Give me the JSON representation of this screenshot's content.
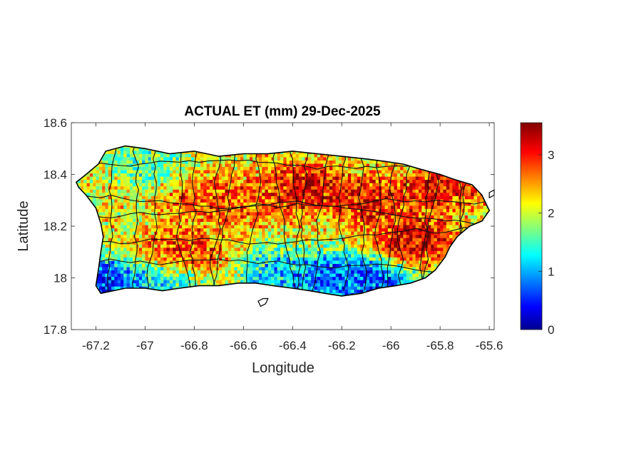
{
  "figure": {
    "title": "ACTUAL ET (mm) 29-Dec-2025",
    "xlabel": "Longitude",
    "ylabel": "Latitude"
  },
  "map": {
    "region": "Puerto Rico",
    "variable": "actual evapotranspiration",
    "units": "mm",
    "xlim": [
      -67.3,
      -65.58
    ],
    "ylim": [
      17.8,
      18.6
    ],
    "x_ticks": [
      "-67.2",
      "-67",
      "-66.8",
      "-66.6",
      "-66.4",
      "-66.2",
      "-66",
      "-65.8",
      "-65.6"
    ],
    "x_tick_values": [
      -67.2,
      -67.0,
      -66.8,
      -66.6,
      -66.4,
      -66.2,
      -66.0,
      -65.8,
      -65.6
    ],
    "y_ticks": [
      "18.6",
      "18.4",
      "18.2",
      "18",
      "17.8"
    ],
    "y_tick_values": [
      18.6,
      18.4,
      18.2,
      18.0,
      17.8
    ],
    "colormap": "jet",
    "colors": [
      "#00008f",
      "#0000ff",
      "#00ffff",
      "#ffff00",
      "#ff0000",
      "#800000"
    ],
    "boundary_color": "#000000",
    "outline": [
      [
        -67.28,
        18.37
      ],
      [
        -67.24,
        18.4
      ],
      [
        -67.19,
        18.44
      ],
      [
        -67.16,
        18.49
      ],
      [
        -67.08,
        18.51
      ],
      [
        -67.0,
        18.5
      ],
      [
        -66.9,
        18.48
      ],
      [
        -66.8,
        18.49
      ],
      [
        -66.7,
        18.47
      ],
      [
        -66.6,
        18.48
      ],
      [
        -66.5,
        18.48
      ],
      [
        -66.4,
        18.49
      ],
      [
        -66.3,
        18.48
      ],
      [
        -66.2,
        18.47
      ],
      [
        -66.1,
        18.46
      ],
      [
        -66.02,
        18.45
      ],
      [
        -65.95,
        18.44
      ],
      [
        -65.88,
        18.42
      ],
      [
        -65.8,
        18.4
      ],
      [
        -65.74,
        18.38
      ],
      [
        -65.67,
        18.36
      ],
      [
        -65.63,
        18.32
      ],
      [
        -65.6,
        18.26
      ],
      [
        -65.63,
        18.22
      ],
      [
        -65.68,
        18.2
      ],
      [
        -65.73,
        18.16
      ],
      [
        -65.76,
        18.12
      ],
      [
        -65.78,
        18.08
      ],
      [
        -65.82,
        18.03
      ],
      [
        -65.86,
        18.0
      ],
      [
        -65.92,
        17.98
      ],
      [
        -65.98,
        17.97
      ],
      [
        -66.05,
        17.96
      ],
      [
        -66.12,
        17.94
      ],
      [
        -66.2,
        17.93
      ],
      [
        -66.27,
        17.94
      ],
      [
        -66.33,
        17.95
      ],
      [
        -66.4,
        17.96
      ],
      [
        -66.48,
        17.97
      ],
      [
        -66.55,
        17.98
      ],
      [
        -66.62,
        17.98
      ],
      [
        -66.7,
        17.97
      ],
      [
        -66.78,
        17.97
      ],
      [
        -66.86,
        17.96
      ],
      [
        -66.93,
        17.95
      ],
      [
        -67.0,
        17.96
      ],
      [
        -67.08,
        17.96
      ],
      [
        -67.13,
        17.95
      ],
      [
        -67.18,
        17.94
      ],
      [
        -67.2,
        17.97
      ],
      [
        -67.19,
        18.03
      ],
      [
        -67.18,
        18.1
      ],
      [
        -67.17,
        18.16
      ],
      [
        -67.18,
        18.21
      ],
      [
        -67.2,
        18.27
      ],
      [
        -67.24,
        18.32
      ],
      [
        -67.27,
        18.35
      ]
    ],
    "islands": [
      [
        [
          -66.54,
          17.91
        ],
        [
          -66.52,
          17.92
        ],
        [
          -66.5,
          17.92
        ],
        [
          -66.51,
          17.9
        ],
        [
          -66.53,
          17.89
        ]
      ],
      [
        [
          -65.6,
          18.33
        ],
        [
          -65.58,
          18.34
        ],
        [
          -65.58,
          18.32
        ],
        [
          -65.6,
          18.31
        ]
      ]
    ],
    "et_peaks": [
      {
        "lon": -66.35,
        "lat": 18.35,
        "value": 3.4
      },
      {
        "lon": -66.1,
        "lat": 18.3,
        "value": 3.3
      },
      {
        "lon": -65.9,
        "lat": 18.15,
        "value": 3.5
      },
      {
        "lon": -65.8,
        "lat": 18.35,
        "value": 3.3
      },
      {
        "lon": -66.75,
        "lat": 18.3,
        "value": 3.0
      },
      {
        "lon": -66.85,
        "lat": 18.1,
        "value": 3.1
      },
      {
        "lon": -66.55,
        "lat": 18.3,
        "value": 2.9
      },
      {
        "lon": -66.25,
        "lat": 18.0,
        "value": 0.5
      },
      {
        "lon": -66.08,
        "lat": 17.98,
        "value": 0.4
      },
      {
        "lon": -66.45,
        "lat": 18.02,
        "value": 0.9
      },
      {
        "lon": -67.17,
        "lat": 17.98,
        "value": 0.2
      },
      {
        "lon": -67.0,
        "lat": 18.45,
        "value": 1.5
      },
      {
        "lon": -66.93,
        "lat": 17.99,
        "value": 1.1
      }
    ],
    "et_base": 2.2
  },
  "colorbar": {
    "range": [
      0,
      3.55
    ],
    "ticks": [
      "0",
      "1",
      "2",
      "3"
    ],
    "tick_values": [
      0,
      1,
      2,
      3
    ]
  }
}
